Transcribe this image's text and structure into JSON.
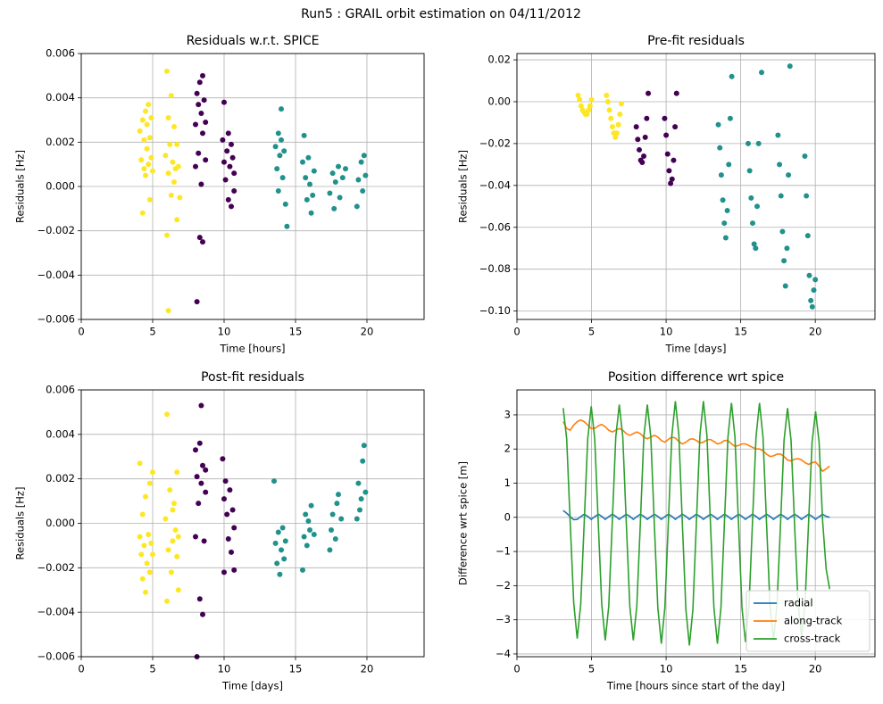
{
  "title": "Run5 : GRAIL orbit estimation on 04/11/2012",
  "chart_data": [
    {
      "type": "scatter",
      "title": "Residuals w.r.t. SPICE",
      "xlabel": "Time [hours]",
      "ylabel": "Residuals [Hz]",
      "grid": true,
      "xlim": [
        0,
        24
      ],
      "xticks": [
        0,
        5,
        10,
        15,
        20
      ],
      "ylim": [
        -0.006,
        0.006
      ],
      "yticks": [
        {
          "value": -0.006,
          "label": "−0.006"
        },
        {
          "value": -0.004,
          "label": "−0.004"
        },
        {
          "value": -0.002,
          "label": "−0.002"
        },
        {
          "value": 0,
          "label": "0.000"
        },
        0.002,
        0.004,
        0.006
      ],
      "series": [
        {
          "color": "#fde725",
          "x": [
            4.1,
            4.2,
            4.3,
            4.3,
            4.4,
            4.4,
            4.5,
            4.5,
            4.6,
            4.6,
            4.7,
            4.7,
            4.8,
            4.8,
            4.9,
            4.9,
            5.0,
            5.9,
            6.0,
            6.0,
            6.1,
            6.1,
            6.2,
            6.3,
            6.3,
            6.4,
            6.5,
            6.5,
            6.6,
            6.7,
            6.7,
            6.8,
            6.9,
            6.1
          ],
          "values": [
            0.0025,
            0.0012,
            -0.0012,
            0.003,
            0.0008,
            0.0021,
            0.0034,
            0.0005,
            0.0017,
            0.0028,
            0.0037,
            0.001,
            -0.0006,
            0.0022,
            0.0013,
            0.0031,
            0.0007,
            0.0014,
            -0.0022,
            0.0052,
            0.0031,
            0.0006,
            0.0019,
            -0.0004,
            0.0041,
            0.0011,
            0.0027,
            0.0002,
            0.0008,
            -0.0015,
            0.0019,
            0.0009,
            -0.0005,
            -0.0056
          ]
        },
        {
          "color": "#440154",
          "x": [
            8.0,
            8.0,
            8.1,
            8.1,
            8.2,
            8.2,
            8.3,
            8.3,
            8.4,
            8.4,
            8.5,
            8.5,
            8.5,
            8.6,
            8.7,
            8.7,
            9.9,
            10.0,
            10.0,
            10.1,
            10.2,
            10.3,
            10.3,
            10.4,
            10.5,
            10.5,
            10.6,
            10.7,
            10.7
          ],
          "values": [
            0.0028,
            0.0009,
            0.0042,
            -0.0052,
            0.0037,
            0.0015,
            0.0047,
            -0.0023,
            0.0033,
            0.0001,
            0.005,
            0.0024,
            -0.0025,
            0.0039,
            0.0012,
            0.0029,
            0.0021,
            0.0038,
            0.0011,
            0.0003,
            0.0016,
            -0.0006,
            0.0024,
            0.0009,
            0.0019,
            -0.0009,
            0.0013,
            -0.0002,
            0.0006
          ]
        },
        {
          "color": "#21918c",
          "x": [
            13.6,
            13.7,
            13.8,
            13.8,
            13.9,
            14.0,
            14.0,
            14.1,
            14.2,
            14.3,
            14.4,
            15.5,
            15.6,
            15.7,
            15.8,
            15.9,
            16.0,
            16.1,
            16.2,
            16.3,
            17.4,
            17.6,
            17.7,
            17.8,
            18.0,
            18.1,
            18.3,
            18.5,
            19.3,
            19.4,
            19.6,
            19.7,
            19.8,
            19.9
          ],
          "values": [
            0.0018,
            0.0008,
            0.0024,
            -0.0002,
            0.0014,
            0.0035,
            0.0021,
            0.0004,
            0.0016,
            -0.0008,
            -0.0018,
            0.0011,
            0.0023,
            0.0004,
            -0.0006,
            0.0013,
            0.0001,
            -0.0012,
            -0.0004,
            0.0007,
            -0.0003,
            0.0006,
            -0.001,
            0.0002,
            0.0009,
            -0.0005,
            0.0004,
            0.0008,
            -0.0009,
            0.0003,
            0.0011,
            -0.0002,
            0.0014,
            0.0005
          ]
        }
      ]
    },
    {
      "type": "scatter",
      "title": "Pre-fit residuals",
      "xlabel": "Time [days]",
      "ylabel": "Residuals [Hz]",
      "grid": true,
      "xlim": [
        0,
        24
      ],
      "xticks": [
        0,
        5,
        10,
        15,
        20
      ],
      "ylim": [
        -0.104,
        0.023
      ],
      "yticks": [
        {
          "value": -0.1,
          "label": "−0.10"
        },
        {
          "value": -0.08,
          "label": "−0.08"
        },
        {
          "value": -0.06,
          "label": "−0.06"
        },
        {
          "value": -0.04,
          "label": "−0.04"
        },
        {
          "value": -0.02,
          "label": "−0.02"
        },
        {
          "value": 0,
          "label": "0.00"
        },
        0.02
      ],
      "series": [
        {
          "color": "#fde725",
          "x": [
            4.1,
            4.2,
            4.3,
            4.4,
            4.5,
            4.6,
            4.7,
            4.8,
            4.9,
            5.0,
            6.0,
            6.1,
            6.2,
            6.3,
            6.4,
            6.5,
            6.6,
            6.7,
            6.8,
            6.9,
            7.0
          ],
          "values": [
            0.003,
            0.001,
            -0.002,
            -0.004,
            -0.005,
            -0.006,
            -0.006,
            -0.004,
            -0.002,
            0.001,
            0.003,
            0,
            -0.004,
            -0.008,
            -0.012,
            -0.015,
            -0.017,
            -0.015,
            -0.011,
            -0.006,
            -0.001
          ]
        },
        {
          "color": "#440154",
          "x": [
            8.0,
            8.1,
            8.2,
            8.3,
            8.4,
            8.5,
            8.6,
            8.7,
            8.8,
            9.9,
            10.0,
            10.1,
            10.2,
            10.3,
            10.4,
            10.5,
            10.6,
            10.7
          ],
          "values": [
            -0.012,
            -0.018,
            -0.023,
            -0.028,
            -0.029,
            -0.026,
            -0.017,
            -0.008,
            0.004,
            -0.008,
            -0.016,
            -0.025,
            -0.033,
            -0.039,
            -0.037,
            -0.028,
            -0.012,
            0.004
          ]
        },
        {
          "color": "#21918c",
          "x": [
            13.5,
            13.6,
            13.7,
            13.8,
            13.9,
            14.0,
            14.1,
            14.2,
            14.3,
            14.4,
            15.5,
            15.6,
            15.7,
            15.8,
            15.9,
            16.0,
            16.1,
            16.2,
            16.4,
            17.5,
            17.6,
            17.7,
            17.8,
            17.9,
            18.0,
            18.1,
            18.2,
            18.3,
            19.3,
            19.4,
            19.5,
            19.6,
            19.7,
            19.8,
            19.9,
            20.0
          ],
          "values": [
            -0.011,
            -0.022,
            -0.035,
            -0.047,
            -0.058,
            -0.065,
            -0.052,
            -0.03,
            -0.008,
            0.012,
            -0.02,
            -0.033,
            -0.046,
            -0.058,
            -0.068,
            -0.07,
            -0.05,
            -0.02,
            0.014,
            -0.016,
            -0.03,
            -0.045,
            -0.062,
            -0.076,
            -0.088,
            -0.07,
            -0.035,
            0.017,
            -0.026,
            -0.045,
            -0.064,
            -0.083,
            -0.095,
            -0.098,
            -0.09,
            -0.085
          ]
        }
      ]
    },
    {
      "type": "scatter",
      "title": "Post-fit residuals",
      "xlabel": "Time [days]",
      "ylabel": "Residuals [Hz]",
      "grid": true,
      "xlim": [
        0,
        24
      ],
      "xticks": [
        0,
        5,
        10,
        15,
        20
      ],
      "ylim": [
        -0.006,
        0.006
      ],
      "yticks": [
        {
          "value": -0.006,
          "label": "−0.006"
        },
        {
          "value": -0.004,
          "label": "−0.004"
        },
        {
          "value": -0.002,
          "label": "−0.002"
        },
        {
          "value": 0,
          "label": "0.000"
        },
        0.002,
        0.004,
        0.006
      ],
      "series": [
        {
          "color": "#fde725",
          "x": [
            4.1,
            4.1,
            4.2,
            4.3,
            4.3,
            4.4,
            4.5,
            4.5,
            4.6,
            4.7,
            4.8,
            4.8,
            4.9,
            5.0,
            5.0,
            5.9,
            6.0,
            6.0,
            6.1,
            6.2,
            6.3,
            6.4,
            6.4,
            6.5,
            6.6,
            6.7,
            6.7,
            6.8,
            6.8
          ],
          "values": [
            0.0027,
            -0.0006,
            -0.0014,
            -0.0025,
            0.0004,
            -0.001,
            -0.0031,
            0.0012,
            -0.0018,
            -0.0005,
            0.0018,
            -0.0022,
            -0.0009,
            0.0023,
            -0.0014,
            0.0002,
            0.0049,
            -0.0035,
            -0.0012,
            0.0015,
            -0.0022,
            0.0006,
            -0.0008,
            0.0009,
            -0.0003,
            0.0023,
            -0.0015,
            -0.003,
            -0.0006
          ]
        },
        {
          "color": "#440154",
          "x": [
            8.0,
            8.0,
            8.1,
            8.1,
            8.2,
            8.3,
            8.3,
            8.4,
            8.4,
            8.5,
            8.5,
            8.6,
            8.7,
            8.7,
            9.9,
            10.0,
            10.0,
            10.1,
            10.2,
            10.3,
            10.4,
            10.5,
            10.6,
            10.7,
            10.7
          ],
          "values": [
            0.0033,
            -0.0006,
            0.0021,
            -0.006,
            0.0009,
            -0.0034,
            0.0036,
            0.0018,
            0.0053,
            -0.0041,
            0.0026,
            -0.0008,
            0.0014,
            0.0024,
            0.0029,
            0.0011,
            -0.0022,
            0.0019,
            0.0004,
            -0.0007,
            0.0015,
            -0.0013,
            0.0006,
            -0.0021,
            -0.0002
          ]
        },
        {
          "color": "#21918c",
          "x": [
            13.5,
            13.6,
            13.7,
            13.8,
            13.9,
            14.0,
            14.1,
            14.2,
            14.3,
            15.5,
            15.6,
            15.7,
            15.8,
            15.9,
            16.0,
            16.1,
            16.3,
            17.4,
            17.5,
            17.6,
            17.8,
            17.9,
            18.0,
            18.2,
            19.3,
            19.4,
            19.5,
            19.6,
            19.7,
            19.8,
            19.9
          ],
          "values": [
            0.0019,
            -0.0009,
            -0.0018,
            -0.0004,
            -0.0023,
            -0.0012,
            -0.0002,
            -0.0016,
            -0.0008,
            -0.0021,
            -0.0006,
            0.0004,
            -0.001,
            0.0001,
            -0.0003,
            0.0008,
            -0.0005,
            -0.0012,
            -0.0003,
            0.0004,
            -0.0007,
            0.0009,
            0.0013,
            0.0002,
            0.0002,
            0.0018,
            0.0006,
            0.0011,
            0.0028,
            0.0035,
            0.0014
          ]
        }
      ]
    },
    {
      "type": "line",
      "title": "Position difference wrt spice",
      "xlabel": "Time [hours since start of the day]",
      "ylabel": "Difference wrt spice [m]",
      "grid": true,
      "legend": "lower right",
      "xlim": [
        0,
        24
      ],
      "xticks": [
        0,
        5,
        10,
        15,
        20
      ],
      "ylim": [
        -4.08,
        3.73
      ],
      "yticks": [
        {
          "value": -4,
          "label": "−4"
        },
        {
          "value": -3,
          "label": "−3"
        },
        {
          "value": -2,
          "label": "−2"
        },
        {
          "value": -1,
          "label": "−1"
        },
        0,
        1,
        2,
        3
      ],
      "x": [
        3.1,
        3.335,
        3.57,
        3.805,
        4.04,
        4.275,
        4.51,
        4.745,
        4.98,
        5.215,
        5.45,
        5.685,
        5.92,
        6.155,
        6.39,
        6.625,
        6.86,
        7.095,
        7.33,
        7.565,
        7.8,
        8.035,
        8.27,
        8.505,
        8.74,
        8.975,
        9.21,
        9.445,
        9.68,
        9.915,
        10.15,
        10.385,
        10.62,
        10.855,
        11.09,
        11.325,
        11.56,
        11.795,
        12.03,
        12.265,
        12.5,
        12.735,
        12.97,
        13.205,
        13.44,
        13.675,
        13.91,
        14.145,
        14.38,
        14.615,
        14.85,
        15.085,
        15.32,
        15.555,
        15.79,
        16.025,
        16.26,
        16.495,
        16.73,
        16.965,
        17.2,
        17.435,
        17.67,
        17.905,
        18.14,
        18.375,
        18.61,
        18.845,
        19.08,
        19.315,
        19.55,
        19.785,
        20.02,
        20.255,
        20.49,
        20.725,
        20.96
      ],
      "series": [
        {
          "name": "radial",
          "color": "#1f77b4",
          "values": [
            0.2,
            0.12,
            0.02,
            -0.07,
            -0.06,
            0.02,
            0.09,
            0.03,
            -0.06,
            0.02,
            0.09,
            0.03,
            -0.06,
            0.02,
            0.09,
            0.03,
            -0.06,
            0.02,
            0.09,
            0.03,
            -0.06,
            0.02,
            0.09,
            0.03,
            -0.06,
            0.02,
            0.09,
            0.03,
            -0.06,
            0.02,
            0.09,
            0.03,
            -0.06,
            0.02,
            0.09,
            0.03,
            -0.06,
            0.02,
            0.09,
            0.03,
            -0.06,
            0.02,
            0.09,
            0.03,
            -0.06,
            0.02,
            0.09,
            0.03,
            -0.06,
            0.02,
            0.09,
            0.03,
            -0.06,
            0.02,
            0.09,
            0.03,
            -0.06,
            0.02,
            0.09,
            0.03,
            -0.06,
            0.02,
            0.09,
            0.03,
            -0.06,
            0.02,
            0.09,
            0.03,
            -0.06,
            0.02,
            0.09,
            0.03,
            -0.06,
            0.02,
            0.09,
            0.03,
            0.0
          ]
        },
        {
          "name": "along-track",
          "color": "#ff7f0e",
          "values": [
            2.8,
            2.6,
            2.55,
            2.7,
            2.8,
            2.85,
            2.8,
            2.7,
            2.6,
            2.6,
            2.68,
            2.72,
            2.65,
            2.55,
            2.5,
            2.55,
            2.6,
            2.55,
            2.45,
            2.4,
            2.45,
            2.5,
            2.45,
            2.35,
            2.3,
            2.35,
            2.4,
            2.35,
            2.25,
            2.2,
            2.28,
            2.35,
            2.32,
            2.22,
            2.15,
            2.2,
            2.28,
            2.3,
            2.25,
            2.18,
            2.2,
            2.27,
            2.28,
            2.22,
            2.15,
            2.18,
            2.25,
            2.25,
            2.15,
            2.08,
            2.1,
            2.15,
            2.15,
            2.1,
            2.05,
            2.0,
            2.0,
            1.95,
            1.85,
            1.78,
            1.8,
            1.85,
            1.85,
            1.78,
            1.68,
            1.65,
            1.7,
            1.72,
            1.68,
            1.6,
            1.55,
            1.6,
            1.62,
            1.5,
            1.35,
            1.42,
            1.5
          ]
        },
        {
          "name": "cross-track",
          "color": "#2ca02c",
          "values": [
            3.2,
            2.3,
            -0.15,
            -2.5,
            -3.55,
            -2.55,
            -0.15,
            2.3,
            3.25,
            2.3,
            -0.15,
            -2.55,
            -3.6,
            -2.6,
            -0.15,
            2.35,
            3.3,
            2.35,
            -0.15,
            -2.6,
            -3.6,
            -2.6,
            -0.2,
            2.35,
            3.3,
            2.35,
            -0.2,
            -2.65,
            -3.7,
            -2.65,
            -0.15,
            2.4,
            3.4,
            2.4,
            -0.2,
            -2.7,
            -3.75,
            -2.7,
            -0.15,
            2.4,
            3.4,
            2.4,
            -0.15,
            -2.65,
            -3.7,
            -2.65,
            -0.15,
            2.35,
            3.35,
            2.35,
            -0.15,
            -2.65,
            -3.65,
            -2.6,
            -0.15,
            2.35,
            3.35,
            2.35,
            -0.15,
            -2.6,
            -3.6,
            -2.55,
            -0.2,
            2.25,
            3.2,
            2.25,
            -0.2,
            -2.5,
            -3.5,
            -2.5,
            -0.15,
            2.2,
            3.1,
            2.2,
            -0.1,
            -1.5,
            -2.1
          ]
        }
      ]
    }
  ]
}
